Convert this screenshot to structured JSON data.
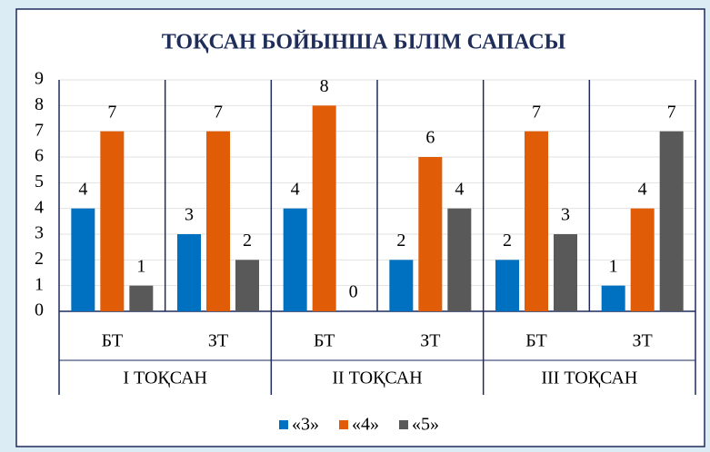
{
  "chart_data": {
    "type": "bar",
    "title": "ТОҚСАН БОЙЫНША  БІЛІМ САПАСЫ",
    "categories": [
      "БТ",
      "ЗТ",
      "БТ",
      "ЗТ",
      "БТ",
      "ЗТ"
    ],
    "groups": [
      "I ТОҚСАН",
      "II ТОҚСАН",
      "III ТОҚСАН"
    ],
    "series": [
      {
        "name": "«3»",
        "color": "#0070c0",
        "values": [
          4,
          3,
          4,
          2,
          2,
          1
        ]
      },
      {
        "name": "«4»",
        "color": "#e05c06",
        "values": [
          7,
          7,
          8,
          6,
          7,
          4
        ]
      },
      {
        "name": "«5»",
        "color": "#595959",
        "values": [
          1,
          2,
          0,
          4,
          3,
          7
        ]
      }
    ],
    "ylim": [
      0,
      9
    ],
    "yticks": [
      0,
      1,
      2,
      3,
      4,
      5,
      6,
      7,
      8,
      9
    ],
    "grid": true,
    "legend": "bottom"
  }
}
